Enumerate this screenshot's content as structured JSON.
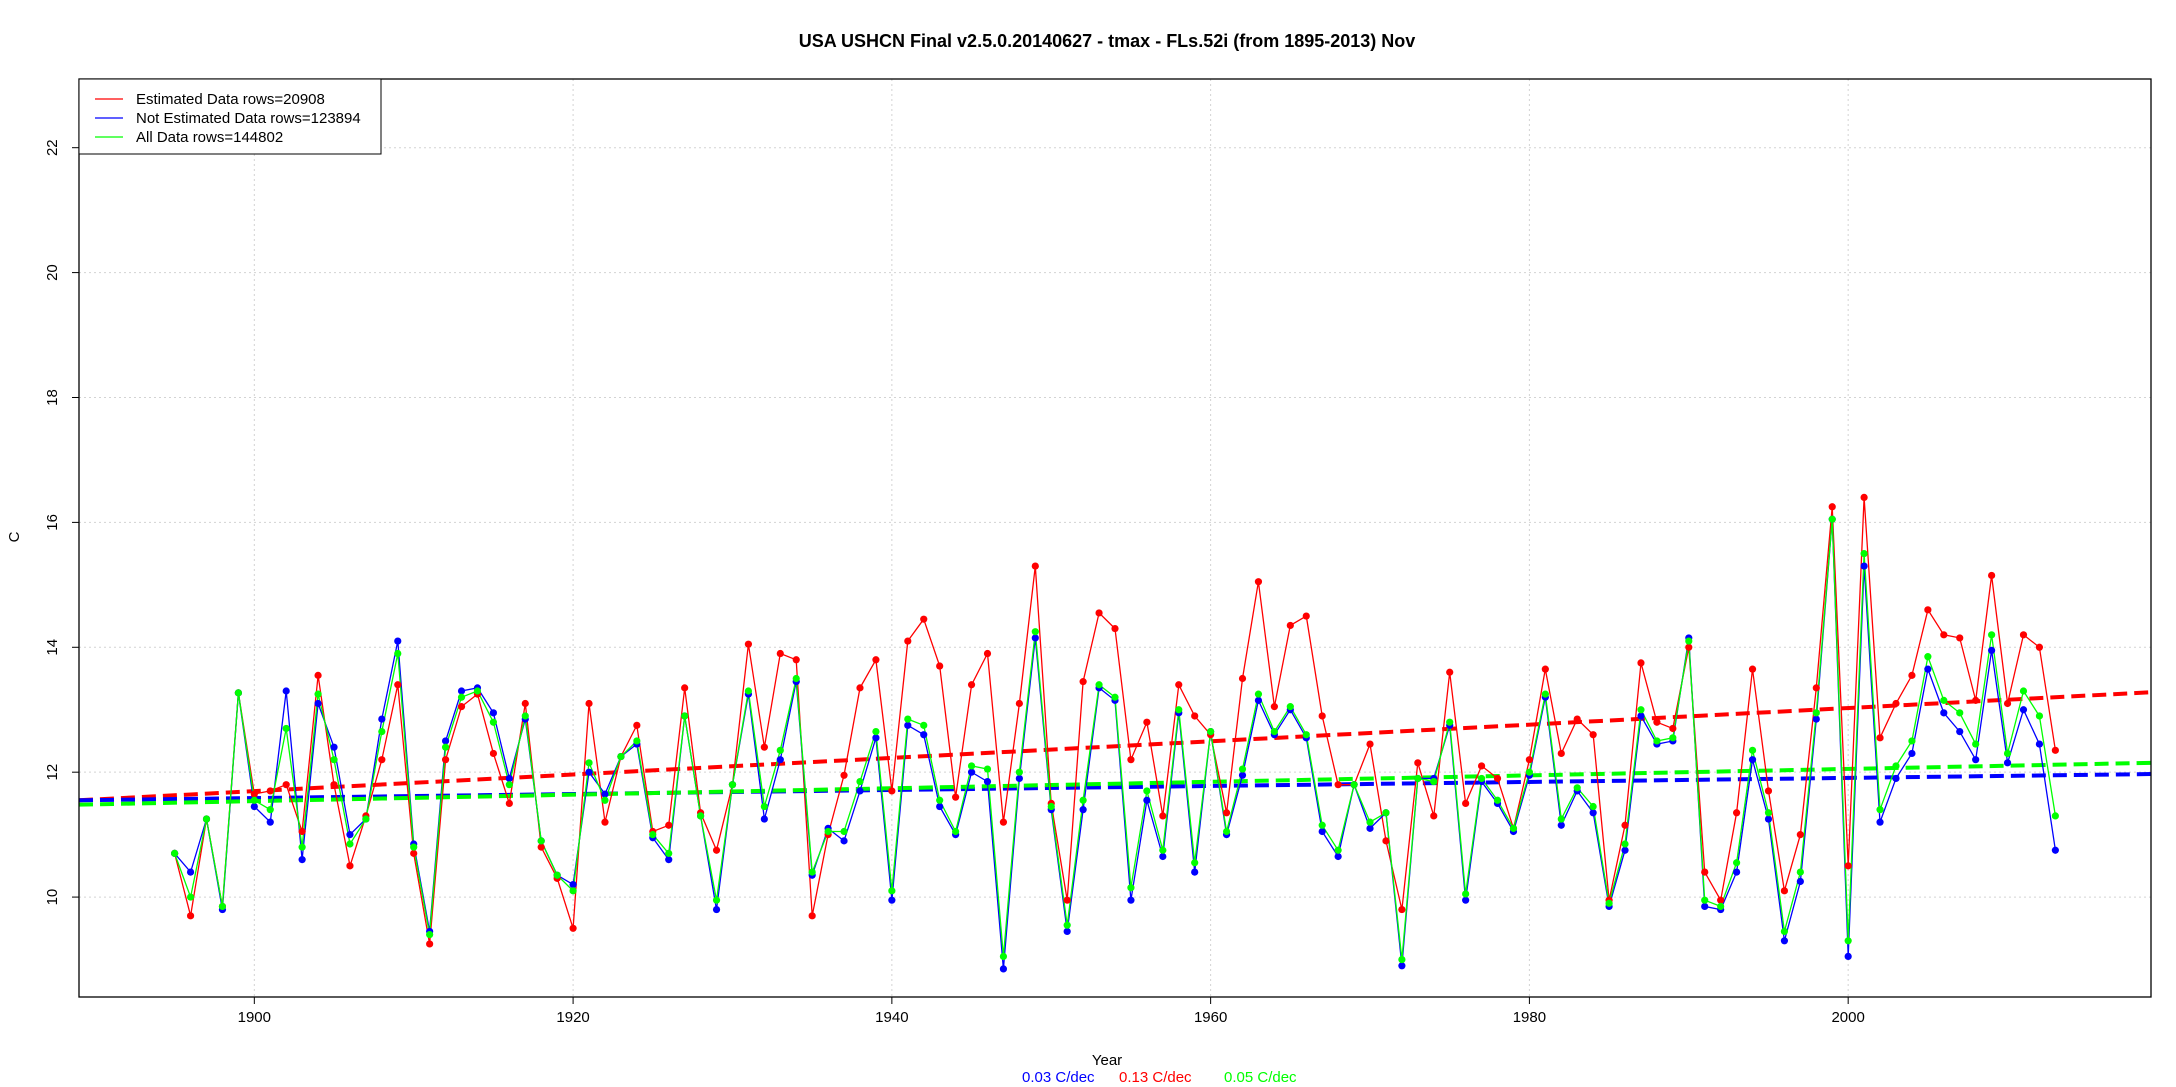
{
  "chart_data": {
    "type": "line",
    "title": "USA USHCN Final v2.5.0.20140627 - tmax - FLs.52i (from 1895-2013) Nov",
    "xlabel": "Year",
    "ylabel": "C",
    "xlim": [
      1889,
      2019
    ],
    "ylim": [
      8.4,
      23.1
    ],
    "x_ticks": [
      1900,
      1920,
      1940,
      1960,
      1980,
      2000
    ],
    "y_ticks": [
      10,
      12,
      14,
      16,
      18,
      20,
      22
    ],
    "grid": true,
    "legend": {
      "position": "top-left",
      "entries": [
        {
          "label": "Estimated Data rows=20908",
          "color": "#ff0000"
        },
        {
          "label": "Not Estimated Data rows=123894",
          "color": "#0000ff"
        },
        {
          "label": "All Data rows=144802",
          "color": "#00ff00"
        }
      ]
    },
    "trend_labels": [
      {
        "text": "0.03 C/dec",
        "color": "#0000ff"
      },
      {
        "text": "0.13 C/dec",
        "color": "#ff0000"
      },
      {
        "text": "0.05 C/dec",
        "color": "#00ff00"
      }
    ],
    "years": [
      1895,
      1896,
      1897,
      1898,
      1899,
      1900,
      1901,
      1902,
      1903,
      1904,
      1905,
      1906,
      1907,
      1908,
      1909,
      1910,
      1911,
      1912,
      1913,
      1914,
      1915,
      1916,
      1917,
      1918,
      1919,
      1920,
      1921,
      1922,
      1923,
      1924,
      1925,
      1926,
      1927,
      1928,
      1929,
      1930,
      1931,
      1932,
      1933,
      1934,
      1935,
      1936,
      1937,
      1938,
      1939,
      1940,
      1941,
      1942,
      1943,
      1944,
      1945,
      1946,
      1947,
      1948,
      1949,
      1950,
      1951,
      1952,
      1953,
      1954,
      1955,
      1956,
      1957,
      1958,
      1959,
      1960,
      1961,
      1962,
      1963,
      1964,
      1965,
      1966,
      1967,
      1968,
      1969,
      1970,
      1971,
      1972,
      1973,
      1974,
      1975,
      1976,
      1977,
      1978,
      1979,
      1980,
      1981,
      1982,
      1983,
      1984,
      1985,
      1986,
      1987,
      1988,
      1989,
      1990,
      1991,
      1992,
      1993,
      1994,
      1995,
      1996,
      1997,
      1998,
      1999,
      2000,
      2001,
      2002,
      2003,
      2004,
      2005,
      2006,
      2007,
      2008,
      2009,
      2010,
      2011,
      2012,
      2013
    ],
    "series": [
      {
        "name": "Estimated",
        "color": "#ff0000",
        "values": [
          10.7,
          9.7,
          11.25,
          9.85,
          13.27,
          11.65,
          11.7,
          11.8,
          11.05,
          13.55,
          11.8,
          10.5,
          11.3,
          12.2,
          13.4,
          10.7,
          9.25,
          12.2,
          13.05,
          13.25,
          12.3,
          11.5,
          13.1,
          10.8,
          10.3,
          9.5,
          13.1,
          11.2,
          12.25,
          12.75,
          11.05,
          11.15,
          13.35,
          11.35,
          10.75,
          11.8,
          14.05,
          12.4,
          13.9,
          13.8,
          9.7,
          11.0,
          11.95,
          13.35,
          13.8,
          11.7,
          14.1,
          14.45,
          13.7,
          11.6,
          13.4,
          13.9,
          11.2,
          13.1,
          15.3,
          11.5,
          9.95,
          13.45,
          14.55,
          14.3,
          12.2,
          12.8,
          11.3,
          13.4,
          12.9,
          12.6,
          11.35,
          13.5,
          15.05,
          13.05,
          14.35,
          14.5,
          12.9,
          11.8,
          11.8,
          12.45,
          10.9,
          9.8,
          12.15,
          11.3,
          13.6,
          11.5,
          12.1,
          11.9,
          11.1,
          12.2,
          13.65,
          12.3,
          12.85,
          12.6,
          9.95,
          11.15,
          13.75,
          12.8,
          12.7,
          14.0,
          10.4,
          9.95,
          11.35,
          13.65,
          11.7,
          10.1,
          11.0,
          13.35,
          16.25,
          10.5,
          16.4,
          12.55,
          13.1,
          13.55,
          14.6,
          14.2,
          14.15,
          13.15,
          15.15,
          13.1,
          14.2,
          14.0,
          12.35
        ]
      },
      {
        "name": "Not Estimated",
        "color": "#0000ff",
        "values": [
          10.7,
          10.4,
          11.25,
          9.8,
          13.27,
          11.45,
          11.2,
          13.3,
          10.6,
          13.1,
          12.4,
          11.0,
          11.25,
          12.85,
          14.1,
          10.85,
          9.45,
          12.5,
          13.3,
          13.35,
          12.95,
          11.9,
          12.85,
          10.9,
          10.35,
          10.2,
          12.0,
          11.65,
          12.25,
          12.45,
          10.95,
          10.6,
          12.9,
          11.3,
          9.8,
          11.8,
          13.25,
          11.25,
          12.2,
          13.45,
          10.35,
          11.1,
          10.9,
          11.7,
          12.55,
          9.95,
          12.75,
          12.6,
          11.45,
          11.0,
          12.0,
          11.85,
          8.85,
          11.9,
          14.15,
          11.4,
          9.45,
          11.4,
          13.35,
          13.15,
          9.95,
          11.55,
          10.65,
          12.95,
          10.4,
          12.65,
          11.0,
          11.95,
          13.15,
          12.6,
          13.0,
          12.55,
          11.05,
          10.65,
          11.8,
          11.1,
          11.35,
          8.9,
          11.9,
          11.9,
          12.75,
          9.95,
          11.85,
          11.5,
          11.05,
          11.95,
          13.2,
          11.15,
          11.7,
          11.35,
          9.85,
          10.75,
          12.9,
          12.45,
          12.5,
          14.15,
          9.85,
          9.8,
          10.4,
          12.2,
          11.25,
          9.3,
          10.25,
          12.85,
          16.05,
          9.05,
          15.3,
          11.2,
          11.9,
          12.3,
          13.65,
          12.95,
          12.65,
          12.2,
          13.95,
          12.15,
          13.0,
          12.45,
          10.75
        ]
      },
      {
        "name": "All Data",
        "color": "#00ff00",
        "values": [
          10.7,
          10.0,
          11.25,
          9.85,
          13.27,
          11.55,
          11.4,
          12.7,
          10.8,
          13.25,
          12.2,
          10.85,
          11.25,
          12.65,
          13.9,
          10.8,
          9.4,
          12.4,
          13.2,
          13.3,
          12.8,
          11.8,
          12.9,
          10.9,
          10.35,
          10.1,
          12.15,
          11.55,
          12.25,
          12.5,
          11.0,
          10.7,
          12.9,
          11.3,
          9.95,
          11.8,
          13.3,
          11.45,
          12.35,
          13.5,
          10.4,
          11.05,
          11.05,
          11.85,
          12.65,
          10.1,
          12.85,
          12.75,
          11.55,
          11.05,
          12.1,
          12.05,
          9.05,
          12.0,
          14.25,
          11.45,
          9.55,
          11.55,
          13.4,
          13.2,
          10.15,
          11.7,
          10.75,
          13.0,
          10.55,
          12.65,
          11.05,
          12.05,
          13.25,
          12.65,
          13.05,
          12.6,
          11.15,
          10.75,
          11.8,
          11.2,
          11.35,
          9.0,
          11.9,
          11.85,
          12.8,
          10.05,
          11.9,
          11.55,
          11.1,
          12.0,
          13.25,
          11.25,
          11.75,
          11.45,
          9.9,
          10.85,
          13.0,
          12.5,
          12.55,
          14.1,
          9.95,
          9.85,
          10.55,
          12.35,
          11.35,
          9.45,
          10.4,
          12.95,
          16.05,
          9.3,
          15.5,
          11.4,
          12.1,
          12.5,
          13.85,
          13.15,
          12.95,
          12.45,
          14.2,
          12.3,
          13.3,
          12.9,
          11.3
        ]
      }
    ],
    "trend_lines": [
      {
        "name": "Estimated trend",
        "color": "#ff0000",
        "x": [
          1889,
          2019
        ],
        "y": [
          11.55,
          13.28
        ]
      },
      {
        "name": "Not Estimated trend",
        "color": "#0000ff",
        "x": [
          1889,
          2019
        ],
        "y": [
          11.55,
          11.97
        ]
      },
      {
        "name": "All Data trend",
        "color": "#00ff00",
        "x": [
          1889,
          2019
        ],
        "y": [
          11.48,
          12.15
        ]
      }
    ]
  }
}
